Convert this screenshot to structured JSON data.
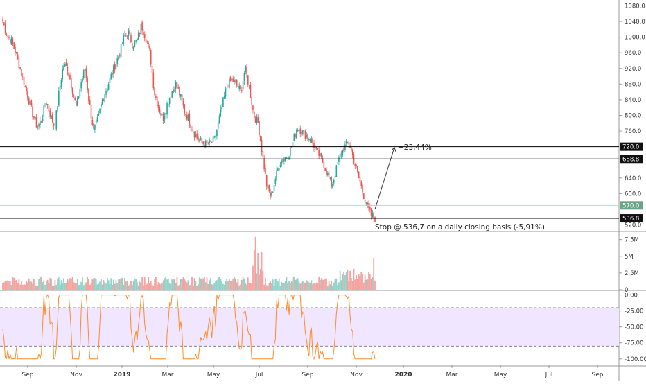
{
  "colors": {
    "up": "#26a69a",
    "down": "#ef5350",
    "volume_up": "#8fd3c9",
    "volume_down": "#f5a3a0",
    "oscillator": "#ff8c2a",
    "band_fill": "#f0e6ff",
    "level_line": "#000000",
    "grid": "#e6e6e6",
    "axis_text": "#333333",
    "current_price_label": "#6aa386"
  },
  "x_axis": {
    "labels": [
      "Sep",
      "Nov",
      "2019",
      "Mar",
      "May",
      "Jul",
      "Sep",
      "Nov",
      "2020",
      "Mar",
      "May",
      "Jul",
      "Sep"
    ],
    "bold_labels": [
      "2019",
      "2020"
    ]
  },
  "price_axis": {
    "ticks": [
      "1080.0",
      "1040.0",
      "1000.0",
      "960.0",
      "920.0",
      "880.0",
      "840.0",
      "800.0",
      "760.0",
      "640.0",
      "600.0",
      "520.0"
    ],
    "level_labels": [
      "720.0",
      "688.8",
      "536.8"
    ],
    "current_label": "570.0"
  },
  "volume_axis": {
    "ticks": [
      "7.5M",
      "5M",
      "2.5M",
      "0"
    ]
  },
  "oscillator_axis": {
    "ticks": [
      "0.00",
      "-25.00",
      "-50.00",
      "-75.00",
      "-100.00"
    ]
  },
  "annotations": {
    "target": "+23,44%",
    "stop": "Stop @ 536,7 on a daily closing basis (-5,91%)"
  },
  "chart_data": {
    "type": "candlestick",
    "title": "",
    "price_range": [
      505,
      1095
    ],
    "volume_range_millions": [
      0,
      8.5
    ],
    "oscillator_range": [
      -110,
      5
    ],
    "oscillator_band": [
      -20,
      -80
    ],
    "horizontal_levels": [
      720.0,
      688.8,
      536.8
    ],
    "current_price": 570.0,
    "month_markers": [
      "Sep 2018",
      "Nov 2018",
      "Jan 2019",
      "Mar 2019",
      "May 2019",
      "Jul 2019",
      "Sep 2019",
      "Nov 2019",
      "Jan 2020",
      "Mar 2020",
      "May 2020",
      "Jul 2020",
      "Sep 2020"
    ],
    "close_path": [
      1040,
      1005,
      990,
      960,
      920,
      880,
      840,
      800,
      770,
      790,
      840,
      800,
      770,
      860,
      930,
      920,
      870,
      820,
      880,
      920,
      830,
      760,
      790,
      840,
      870,
      900,
      930,
      960,
      1000,
      1010,
      980,
      990,
      1030,
      1000,
      960,
      860,
      820,
      790,
      830,
      860,
      880,
      850,
      810,
      790,
      760,
      740,
      730,
      725,
      730,
      740,
      790,
      840,
      880,
      890,
      880,
      860,
      920,
      870,
      800,
      780,
      700,
      620,
      590,
      640,
      680,
      690,
      700,
      730,
      770,
      760,
      750,
      740,
      720,
      700,
      680,
      650,
      620,
      660,
      700,
      720,
      730,
      690,
      650,
      610,
      575,
      545,
      537
    ],
    "stop_price": 536.7,
    "stop_pct": -5.91,
    "target_pct": 23.44
  }
}
